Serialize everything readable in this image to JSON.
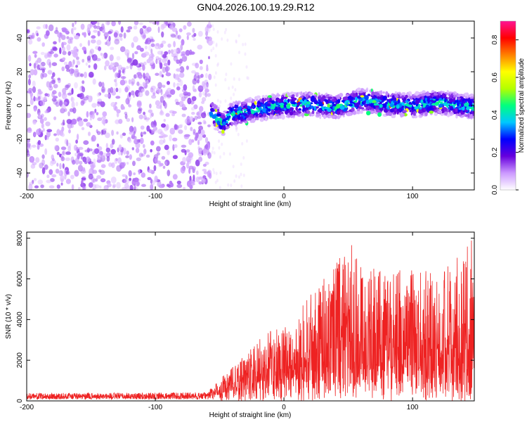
{
  "title": "GN04.2026.100.19.29.R12",
  "chart_data": [
    {
      "type": "heatmap",
      "xlabel": "Height of straight line (km)",
      "ylabel": "Frequency (Hz)",
      "xlim": [
        -200,
        148
      ],
      "ylim": [
        -50,
        50
      ],
      "xticks": [
        -200,
        -100,
        0,
        100
      ],
      "yticks": [
        -40,
        -20,
        0,
        20,
        40
      ],
      "colorbar": {
        "label": "Normalized spectral amplitude",
        "range": [
          0,
          0.9
        ],
        "ticks": [
          0.0,
          0.2,
          0.4,
          0.6,
          0.8
        ]
      },
      "colormap": [
        "#ffffff",
        "#cc99ff",
        "#6600dd",
        "#0000ff",
        "#00c8ff",
        "#00ff7f",
        "#b4ff00",
        "#ffff00",
        "#ff8000",
        "#ff0000",
        "#ff1493"
      ],
      "regions": {
        "noise_x": [
          -200,
          -57
        ],
        "signal_x": [
          -57,
          148
        ],
        "trend_x": [
          -55,
          -48,
          -40,
          -30,
          -20,
          0,
          20,
          40,
          60,
          80,
          100,
          120,
          148
        ],
        "trend_y": [
          -5,
          -11,
          -5,
          -4,
          -2,
          0,
          1,
          -1,
          3,
          1,
          0,
          2,
          -1
        ]
      }
    },
    {
      "type": "line",
      "xlabel": "Height of straight line (km)",
      "ylabel": "SNR (10 * v/v)",
      "xlim": [
        -200,
        148
      ],
      "ylim": [
        0,
        8300
      ],
      "xticks": [
        -200,
        -100,
        0,
        100
      ],
      "yticks": [
        0,
        2000,
        4000,
        6000,
        8000
      ],
      "color": "#ee2222",
      "envelope": {
        "x": [
          -200,
          -60,
          -45,
          -30,
          -20,
          0,
          10,
          20,
          40,
          55,
          65,
          80,
          100,
          120,
          148
        ],
        "baseline": [
          200,
          200,
          500,
          900,
          1000,
          1200,
          1400,
          1500,
          1800,
          1800,
          1900,
          1800,
          1700,
          1800,
          1900
        ],
        "peak": [
          380,
          420,
          1400,
          2500,
          3100,
          3800,
          4300,
          5200,
          6800,
          8000,
          6600,
          6300,
          6600,
          6200,
          8200
        ]
      }
    }
  ]
}
